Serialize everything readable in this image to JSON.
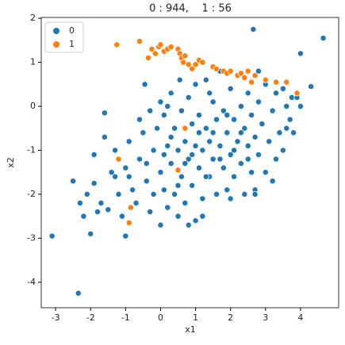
{
  "chart_data": {
    "type": "scatter",
    "title": "0 : 944,    1 : 56",
    "x_label": "x1",
    "y_label": "x2",
    "xlim": [
      -3.41,
      5.09
    ],
    "ylim": [
      -4.58,
      2.02
    ],
    "xticks": [
      -3,
      -2,
      -1,
      0,
      1,
      2,
      3,
      4
    ],
    "yticks": [
      -4,
      -3,
      -2,
      -1,
      0,
      1,
      2
    ],
    "legend": "upper left",
    "series": [
      {
        "name": "0",
        "color": "#1f77b4",
        "x": [
          -3.1,
          -2.35,
          4.65,
          2.65,
          4.0,
          -1.0,
          -2.0,
          -1.6,
          -0.45,
          0.55,
          4.3,
          3.75,
          3.6,
          -2.1,
          -1.9,
          -1.8,
          -1.7,
          -1.5,
          -1.4,
          -1.3,
          -1.2,
          -1.1,
          -1.0,
          -0.9,
          -0.8,
          -0.7,
          -0.6,
          -0.5,
          -0.4,
          -0.3,
          -0.2,
          -0.1,
          0.0,
          0.0,
          0.1,
          0.1,
          0.2,
          0.2,
          0.3,
          0.3,
          0.4,
          0.4,
          0.5,
          0.5,
          0.6,
          0.6,
          0.7,
          0.7,
          0.8,
          0.8,
          0.9,
          0.9,
          1.0,
          1.0,
          1.0,
          1.1,
          1.1,
          1.2,
          1.2,
          1.3,
          1.3,
          1.4,
          1.4,
          1.5,
          1.5,
          1.6,
          1.6,
          1.7,
          1.7,
          1.8,
          1.8,
          1.9,
          1.9,
          2.0,
          2.0,
          2.1,
          2.1,
          2.2,
          2.2,
          2.3,
          2.3,
          2.4,
          2.4,
          2.5,
          2.5,
          2.6,
          2.6,
          2.7,
          2.7,
          2.8,
          2.8,
          2.9,
          3.0,
          3.0,
          3.1,
          3.2,
          3.3,
          3.3,
          3.4,
          3.5,
          3.6,
          3.7,
          3.8,
          3.9,
          4.0,
          -1.3,
          -0.9,
          -0.4,
          -0.2,
          0.1,
          0.3,
          0.5,
          0.7,
          0.9,
          1.1,
          1.3,
          1.5,
          1.7,
          1.9,
          2.1,
          2.3,
          2.5,
          0.0,
          -0.6,
          0.8,
          1.2,
          2.0,
          2.7,
          3.2,
          -2.5,
          -1.9,
          -1.6,
          -2.3,
          -2.2,
          1.4,
          2.8,
          3.5,
          0.2,
          -0.3
        ],
        "values": [
          -2.95,
          -4.25,
          1.55,
          1.75,
          1.2,
          -2.95,
          -2.9,
          -0.15,
          0.5,
          0.6,
          0.45,
          0.2,
          -0.5,
          -2.0,
          -1.75,
          -2.4,
          -2.2,
          -2.35,
          -1.5,
          -1.0,
          -2.0,
          -2.5,
          -1.4,
          -0.8,
          -1.9,
          -2.2,
          -1.2,
          -0.6,
          -1.7,
          -2.4,
          -1.0,
          -0.5,
          -1.5,
          -2.7,
          -0.2,
          -1.9,
          -0.9,
          -2.3,
          -1.3,
          0.3,
          -0.5,
          -2.0,
          -1.0,
          -2.5,
          -0.1,
          -1.6,
          -0.8,
          -2.2,
          -1.2,
          0.2,
          -0.4,
          -1.8,
          -0.9,
          -2.6,
          0.5,
          -1.4,
          -0.2,
          -1.0,
          -2.1,
          -0.5,
          0.6,
          -1.6,
          -0.8,
          -1.2,
          0.1,
          -0.3,
          -2.0,
          -0.9,
          0.8,
          -1.4,
          -0.1,
          -0.6,
          -1.9,
          -1.1,
          0.4,
          -0.3,
          -1.6,
          -0.8,
          0.7,
          -1.3,
          0.0,
          -0.5,
          -2.0,
          -0.9,
          0.3,
          -1.5,
          -0.2,
          -0.7,
          -1.9,
          0.1,
          -1.1,
          -0.4,
          -1.5,
          0.5,
          -0.8,
          -0.1,
          -1.2,
          0.3,
          -0.6,
          -1.0,
          0.0,
          -0.3,
          -0.6,
          0.2,
          0.0,
          -1.6,
          -1.6,
          -1.3,
          -2.0,
          -1.1,
          -0.7,
          -1.8,
          -1.3,
          -1.1,
          -0.6,
          -1.6,
          -0.6,
          -1.2,
          -0.2,
          -1.0,
          -0.6,
          -1.2,
          0.1,
          -0.3,
          -2.7,
          -2.5,
          -2.1,
          -2.0,
          -1.7,
          -1.7,
          -1.1,
          -0.7,
          -2.2,
          -2.5,
          0.3,
          0.8,
          0.4,
          0.0,
          -0.1
        ]
      },
      {
        "name": "1",
        "color": "#ff7f0e",
        "x": [
          -1.25,
          -0.6,
          -0.35,
          -0.25,
          -0.15,
          -0.05,
          0.0,
          0.1,
          0.2,
          0.3,
          0.5,
          0.55,
          0.6,
          0.65,
          0.7,
          0.8,
          0.9,
          1.0,
          1.1,
          1.2,
          1.5,
          1.8,
          1.9,
          2.0,
          2.2,
          2.4,
          2.5,
          2.6,
          2.7,
          3.0,
          3.3,
          3.6,
          3.9,
          -1.2,
          -0.85,
          -0.9,
          0.5,
          0.7,
          1.6,
          2.3
        ],
        "values": [
          1.4,
          1.48,
          1.1,
          1.3,
          1.2,
          1.35,
          1.4,
          1.25,
          1.3,
          1.35,
          1.3,
          1.2,
          1.1,
          1.0,
          1.15,
          0.95,
          0.85,
          0.95,
          1.05,
          1.0,
          0.9,
          0.8,
          0.75,
          0.8,
          0.7,
          0.65,
          0.8,
          0.55,
          0.7,
          0.6,
          0.55,
          0.55,
          0.3,
          -1.2,
          -2.3,
          -2.65,
          -1.45,
          -0.5,
          0.85,
          0.75
        ]
      }
    ]
  }
}
